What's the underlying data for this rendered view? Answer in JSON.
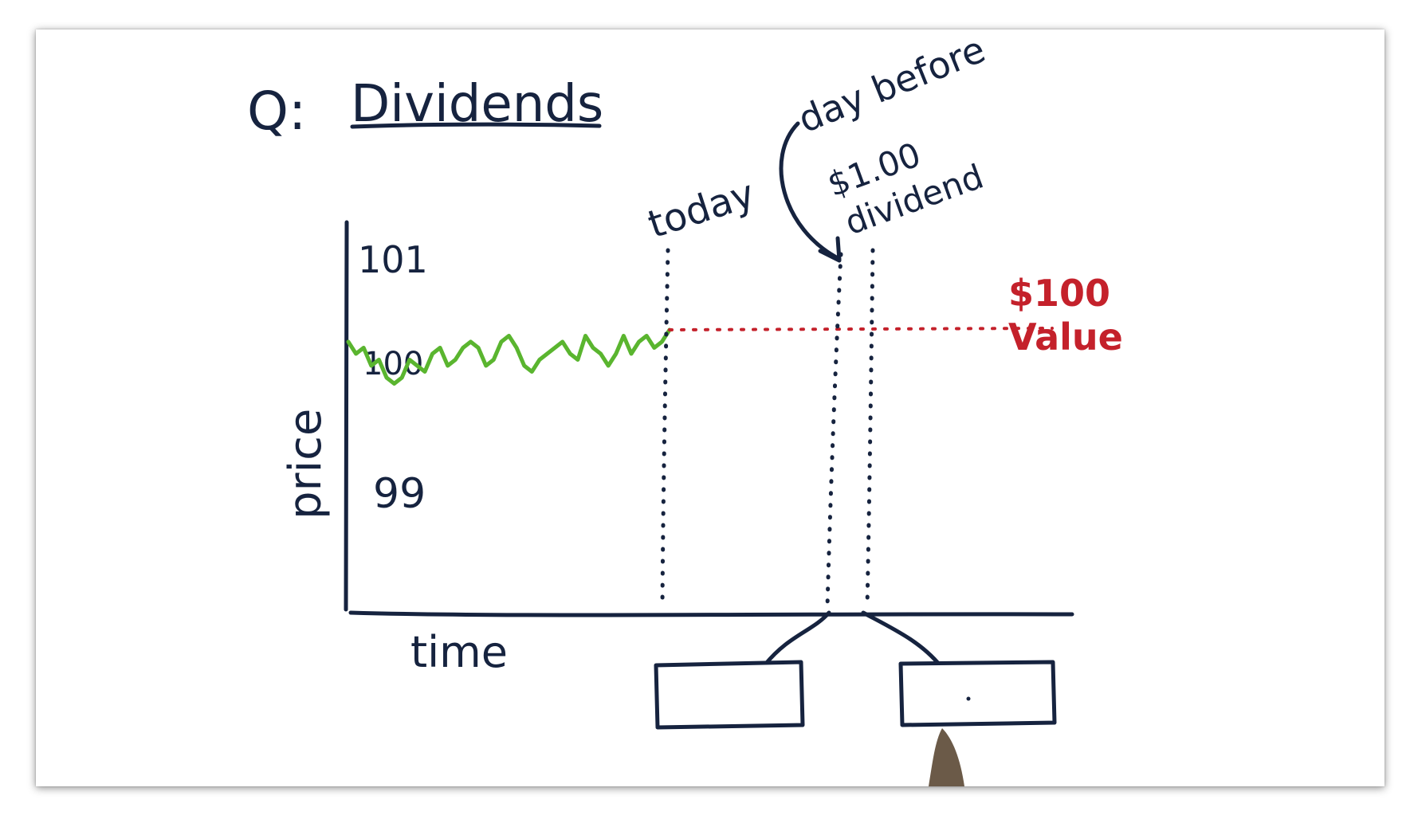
{
  "title": {
    "prefix": "Q:",
    "text": "Dividends"
  },
  "axes": {
    "y_label": "price",
    "x_label": "time",
    "y_ticks": [
      "101",
      "100",
      "99"
    ]
  },
  "markers": {
    "today_label": "today",
    "day_before_label": "day before",
    "dividend_amount": "$1.00",
    "dividend_word": "dividend"
  },
  "value_note": {
    "amount": "$100",
    "word": "Value"
  },
  "answer_boxes": {
    "left_value": "",
    "right_value": ""
  },
  "colors": {
    "ink": "#16233f",
    "price_line": "#5ab52f",
    "value_line": "#c4212b"
  },
  "price_series": [
    99.9,
    99.8,
    99.85,
    99.7,
    99.75,
    99.6,
    99.55,
    99.6,
    99.75,
    99.7,
    99.65,
    99.8,
    99.85,
    99.7,
    99.75,
    99.85,
    99.9,
    99.85,
    99.7,
    99.75,
    99.9,
    99.95,
    99.85,
    99.7,
    99.65,
    99.75,
    99.8,
    99.85,
    99.9,
    99.8,
    99.75,
    99.95,
    99.85,
    99.8,
    99.7,
    99.8,
    99.95,
    99.8,
    99.9,
    99.95,
    99.85,
    99.9,
    100.0
  ]
}
